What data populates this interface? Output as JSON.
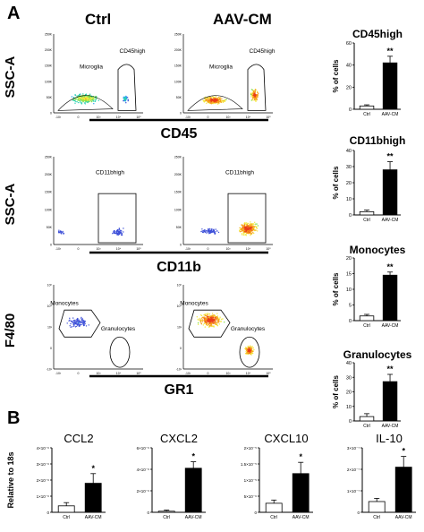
{
  "panels": {
    "a": "A",
    "b": "B"
  },
  "columns": {
    "ctrl": "Ctrl",
    "aav": "AAV-CM"
  },
  "flow_rows": [
    {
      "ylabel": "SSC-A",
      "xlabel": "CD45",
      "ctrl_gates": [
        "Microglia",
        "CD45high"
      ],
      "aav_gates": [
        "Microglia",
        "CD45high"
      ],
      "y_ticks": [
        "250K",
        "200K",
        "150K",
        "100K",
        "50K",
        "0"
      ],
      "x_ticks": [
        "-10³",
        "0",
        "10³",
        "10⁴",
        "10⁵"
      ]
    },
    {
      "ylabel": "SSC-A",
      "xlabel": "CD11b",
      "ctrl_gates": [
        "CD11bhigh"
      ],
      "aav_gates": [
        "CD11bhigh"
      ],
      "y_ticks": [
        "250K",
        "200K",
        "150K",
        "100K",
        "50K",
        "0"
      ],
      "x_ticks": [
        "-10³",
        "0",
        "10³",
        "10⁴",
        "10⁵"
      ]
    },
    {
      "ylabel": "F4/80",
      "xlabel": "GR1",
      "ctrl_gates": [
        "Monocytes",
        "Granulocytes"
      ],
      "aav_gates": [
        "Monocytes",
        "Granulocytes"
      ],
      "y_ticks": [
        "10⁵",
        "10⁴",
        "10³",
        "0",
        "-10³"
      ],
      "x_ticks": [
        "-10³",
        "0",
        "10³",
        "10⁴",
        "10⁵"
      ]
    }
  ],
  "chart_data": [
    {
      "type": "bar",
      "title": "CD45high",
      "ylabel": "% of cells",
      "categories": [
        "Ctrl",
        "AAV-CM"
      ],
      "values": [
        3,
        42
      ],
      "errors": [
        1,
        6
      ],
      "ylim": [
        0,
        60
      ],
      "yticks": [
        "0",
        "20",
        "40",
        "60"
      ],
      "significance": "**"
    },
    {
      "type": "bar",
      "title": "CD11bhigh",
      "ylabel": "% of cells",
      "categories": [
        "Ctrl",
        "AAV-CM"
      ],
      "values": [
        2,
        28
      ],
      "errors": [
        1,
        5
      ],
      "ylim": [
        0,
        40
      ],
      "yticks": [
        "0",
        "10",
        "20",
        "30",
        "40"
      ],
      "significance": "**"
    },
    {
      "type": "bar",
      "title": "Monocytes",
      "ylabel": "% of cells",
      "categories": [
        "Ctrl",
        "AAV-CM"
      ],
      "values": [
        1.5,
        14.5
      ],
      "errors": [
        0.5,
        1
      ],
      "ylim": [
        0,
        20
      ],
      "yticks": [
        "0",
        "5",
        "10",
        "15",
        "20"
      ],
      "significance": "**"
    },
    {
      "type": "bar",
      "title": "Granulocytes",
      "ylabel": "% of cells",
      "categories": [
        "Ctrl",
        "AAV-CM"
      ],
      "values": [
        3,
        27
      ],
      "errors": [
        2,
        5
      ],
      "ylim": [
        0,
        40
      ],
      "yticks": [
        "0",
        "10",
        "20",
        "30",
        "40"
      ],
      "significance": "**"
    },
    {
      "type": "bar",
      "title": "CCL2",
      "ylabel": "Relative to 18s",
      "categories": [
        "Ctrl",
        "AAV-CM"
      ],
      "values": [
        0.4,
        1.8
      ],
      "errors": [
        0.2,
        0.6
      ],
      "ylim": [
        0,
        4
      ],
      "yticks": [
        "0",
        "1×10⁻⁶",
        "2×10⁻⁶",
        "3×10⁻⁶",
        "4×10⁻⁶"
      ],
      "significance": "*"
    },
    {
      "type": "bar",
      "title": "CXCL2",
      "ylabel": "",
      "categories": [
        "Ctrl",
        "AAV-CM"
      ],
      "values": [
        0.1,
        4.1
      ],
      "errors": [
        0.1,
        0.6
      ],
      "ylim": [
        0,
        6
      ],
      "yticks": [
        "0",
        "2×10⁻⁶",
        "4×10⁻⁶",
        "6×10⁻⁶"
      ],
      "significance": "*"
    },
    {
      "type": "bar",
      "title": "CXCL10",
      "ylabel": "",
      "categories": [
        "Ctrl",
        "AAV-CM"
      ],
      "values": [
        0.28,
        1.2
      ],
      "errors": [
        0.1,
        0.35
      ],
      "ylim": [
        0,
        2
      ],
      "yticks": [
        "0",
        "5×10⁻⁶",
        "1×10⁻⁵",
        "1.5×10⁻⁵",
        "2×10⁻⁵"
      ],
      "significance": "*"
    },
    {
      "type": "bar",
      "title": "IL-10",
      "ylabel": "",
      "categories": [
        "Ctrl",
        "AAV-CM"
      ],
      "values": [
        0.5,
        2.1
      ],
      "errors": [
        0.15,
        0.5
      ],
      "ylim": [
        0,
        3
      ],
      "yticks": [
        "0",
        "1×10⁻⁷",
        "2×10⁻⁷",
        "3×10⁻⁷"
      ],
      "significance": "*"
    }
  ]
}
